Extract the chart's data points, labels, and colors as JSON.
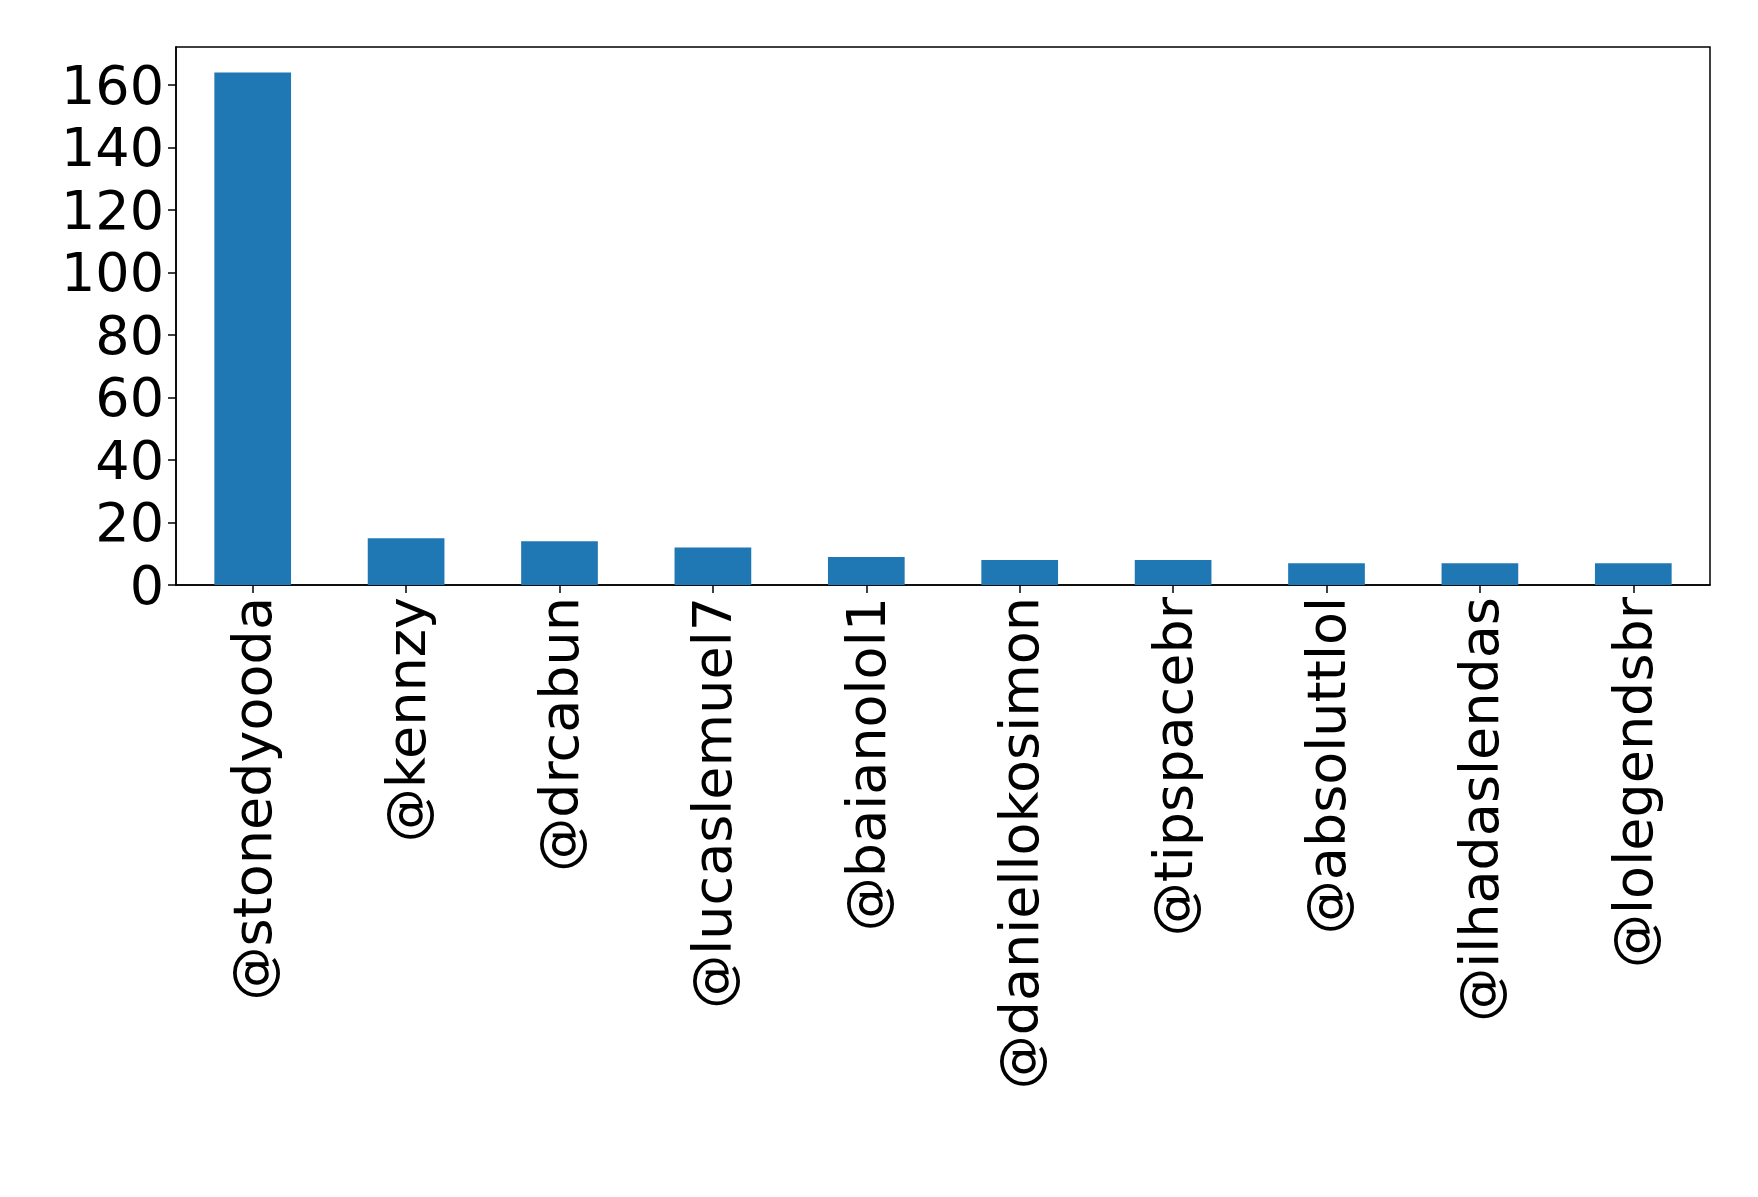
{
  "chart_data": {
    "type": "bar",
    "categories": [
      "@stonedyooda",
      "@kennzy",
      "@drcabun",
      "@lucaslemuel7",
      "@baianolol1",
      "@daniellokosimon",
      "@tipspacebr",
      "@absoluttlol",
      "@ilhadaslendas",
      "@lolegendsbr"
    ],
    "values": [
      164,
      15,
      14,
      12,
      9,
      8,
      8,
      7,
      7,
      7
    ],
    "color": "#1f77b4",
    "ylim": [
      0,
      172.2
    ],
    "yticks": [
      0,
      20,
      40,
      60,
      80,
      100,
      120,
      140,
      160
    ],
    "grid": false
  }
}
